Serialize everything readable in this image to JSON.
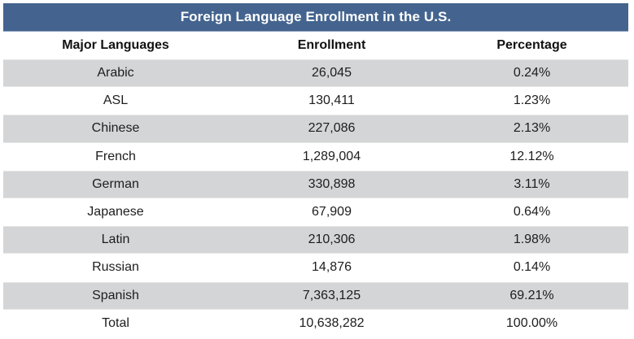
{
  "table": {
    "title": "Foreign Language Enrollment in the U.S.",
    "columns": [
      "Major Languages",
      "Enrollment",
      "Percentage"
    ],
    "rows": [
      {
        "language": "Arabic",
        "enrollment": "26,045",
        "percentage": "0.24%"
      },
      {
        "language": "ASL",
        "enrollment": "130,411",
        "percentage": "1.23%"
      },
      {
        "language": "Chinese",
        "enrollment": "227,086",
        "percentage": "2.13%"
      },
      {
        "language": "French",
        "enrollment": "1,289,004",
        "percentage": "12.12%"
      },
      {
        "language": "German",
        "enrollment": "330,898",
        "percentage": "3.11%"
      },
      {
        "language": "Japanese",
        "enrollment": "67,909",
        "percentage": "0.64%"
      },
      {
        "language": "Latin",
        "enrollment": "210,306",
        "percentage": "1.98%"
      },
      {
        "language": "Russian",
        "enrollment": "14,876",
        "percentage": "0.14%"
      },
      {
        "language": "Spanish",
        "enrollment": "7,363,125",
        "percentage": "69.21%"
      },
      {
        "language": "Total",
        "enrollment": "10,638,282",
        "percentage": "100.00%"
      }
    ]
  },
  "colors": {
    "title_bar": "#44648f",
    "title_text": "#ffffff",
    "shaded_row": "#d4d5d7",
    "plain_row": "#ffffff"
  }
}
